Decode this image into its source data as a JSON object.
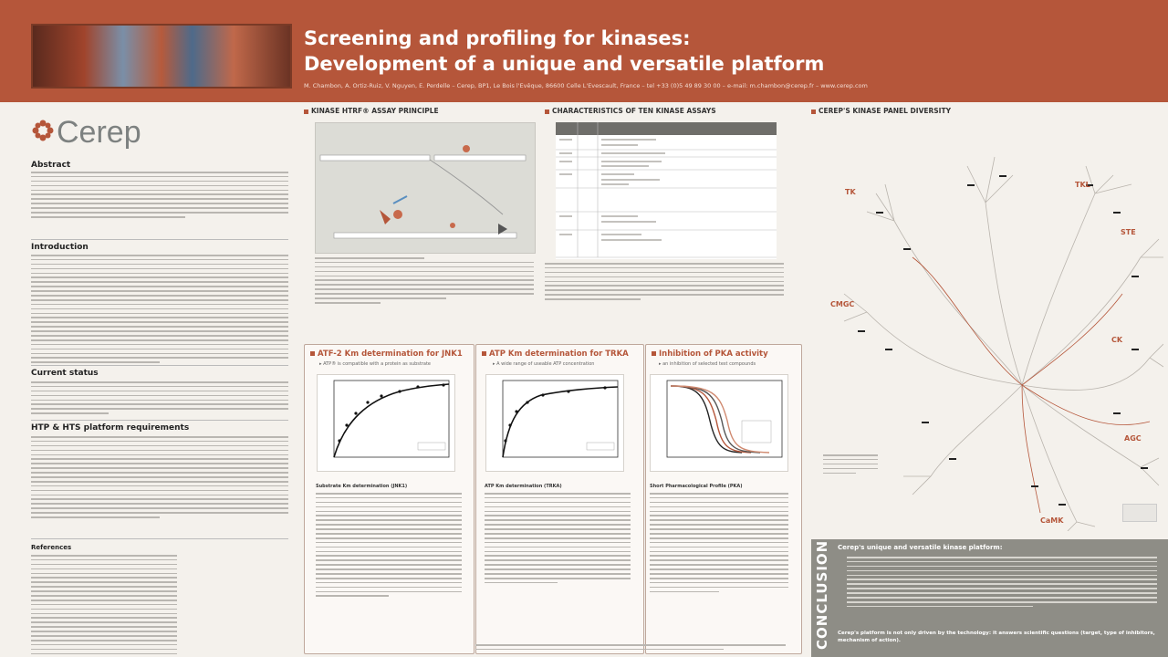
{
  "header": {
    "title_line1": "Screening and profiling for kinases:",
    "title_line2": "Development of a unique and versatile platform",
    "authors": "M. Chambon, A. Ortiz-Ruiz, V. Nguyen, E. Perdelle – Cerep, BP1, Le Bois l'Evêque, 86600 Celle L'Evescault, France – tel +33 (0)5 49 89 30 00 – e-mail: m.chambon@cerep.fr – www.cerep.com"
  },
  "logo": {
    "text": "Cerep",
    "color": "#7d8180"
  },
  "sections": {
    "abstract": "Abstract",
    "introduction": "Introduction",
    "current_status": "Current status",
    "htp_requirements": "HTP & HTS platform requirements",
    "references": "References",
    "assay_principle": "KINASE HTRF® ASSAY PRINCIPLE",
    "characteristics": "CHARACTERISTICS OF TEN KINASE ASSAYS",
    "panel_diversity": "CEREP'S KINASE PANEL DIVERSITY"
  },
  "plots": [
    {
      "title": "ATF-2 Km determination for JNK1",
      "subtitle": "▸ ATP® is compatible with a protein as substrate",
      "caption": "Substrate Km determination (JNK1)"
    },
    {
      "title": "ATP Km determination for TRKA",
      "subtitle": "▸ A wide range of useable ATP concentration",
      "caption": "ATP Km determination (TRKA)"
    },
    {
      "title": "Inhibition of PKA activity",
      "subtitle": "▸ an inhibition of selected test compounds",
      "caption": "Short Pharmacological Profile (PKA)"
    }
  ],
  "tree_labels": {
    "tk": "TK",
    "tkl": "TKL",
    "ste": "STE",
    "cmgc": "CMGC",
    "ck": "CK",
    "agc": "AGC",
    "camk": "CaMK"
  },
  "conclusion": {
    "label": "CONCLUSION",
    "heading": "Cerep's unique and versatile kinase platform:",
    "footer": "Cerep's platform is not only driven by the technology: it answers scientific questions (target, type of inhibitors, mechanism of action)."
  },
  "colors": {
    "accent": "#b5563a",
    "conclusion_bg": "#8e8d86"
  }
}
